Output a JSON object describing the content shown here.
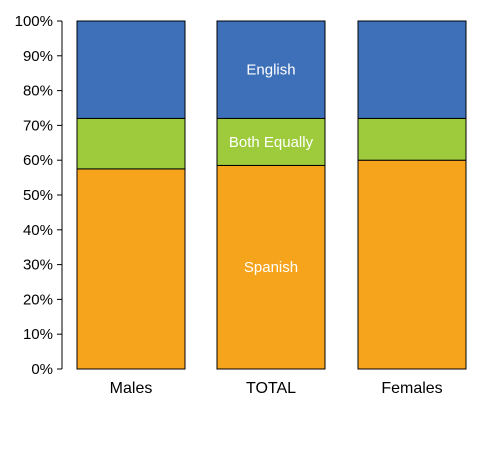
{
  "chart_data": {
    "type": "bar",
    "stacked": true,
    "percent": true,
    "categories": [
      "Males",
      "TOTAL",
      "Females"
    ],
    "series": [
      {
        "name": "Spanish",
        "values": [
          57.5,
          58.5,
          60
        ],
        "color": "#F7A41D"
      },
      {
        "name": "Both Equally",
        "values": [
          14.5,
          13.5,
          12
        ],
        "color": "#9DCB3C"
      },
      {
        "name": "English",
        "values": [
          28,
          28,
          28
        ],
        "color": "#3E70BA"
      }
    ],
    "segment_labels_on": "TOTAL",
    "ylim": [
      0,
      100
    ],
    "yticks": [
      "0%",
      "10%",
      "20%",
      "30%",
      "40%",
      "50%",
      "60%",
      "70%",
      "80%",
      "90%",
      "100%"
    ],
    "title": "",
    "xlabel": "",
    "ylabel": "",
    "grid": false,
    "legend": "none"
  }
}
